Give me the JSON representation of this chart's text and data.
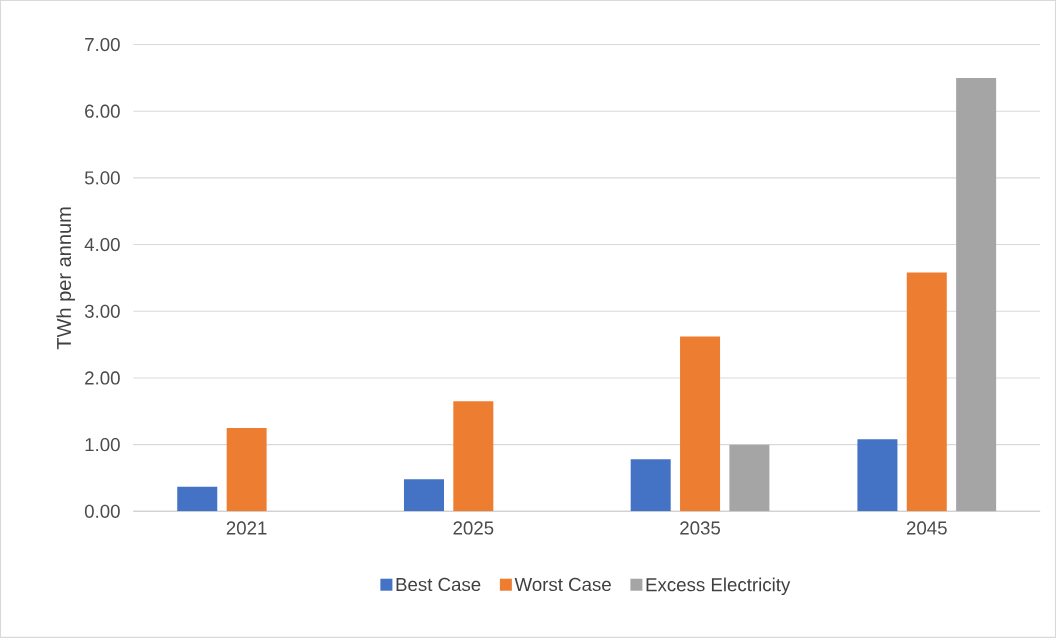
{
  "chart_data": {
    "type": "bar",
    "ylabel": "TWh per annum",
    "categories": [
      "2021",
      "2025",
      "2035",
      "2045"
    ],
    "series": [
      {
        "name": "Best Case",
        "color": "#4472c4",
        "values": [
          0.37,
          0.48,
          0.78,
          1.08
        ]
      },
      {
        "name": "Worst Case",
        "color": "#ed7d31",
        "values": [
          1.25,
          1.65,
          2.62,
          3.58
        ]
      },
      {
        "name": "Excess Electricity",
        "color": "#a5a5a5",
        "values": [
          null,
          null,
          1.0,
          6.5
        ]
      }
    ],
    "ylim": [
      0,
      7
    ],
    "yticks": [
      {
        "value": 0,
        "label": "0.00"
      },
      {
        "value": 1,
        "label": "1.00"
      },
      {
        "value": 2,
        "label": "2.00"
      },
      {
        "value": 3,
        "label": "3.00"
      },
      {
        "value": 4,
        "label": "4.00"
      },
      {
        "value": 5,
        "label": "5.00"
      },
      {
        "value": 6,
        "label": "6.00"
      },
      {
        "value": 7,
        "label": "7.00"
      }
    ],
    "grid": "y",
    "legend": "bottom"
  }
}
